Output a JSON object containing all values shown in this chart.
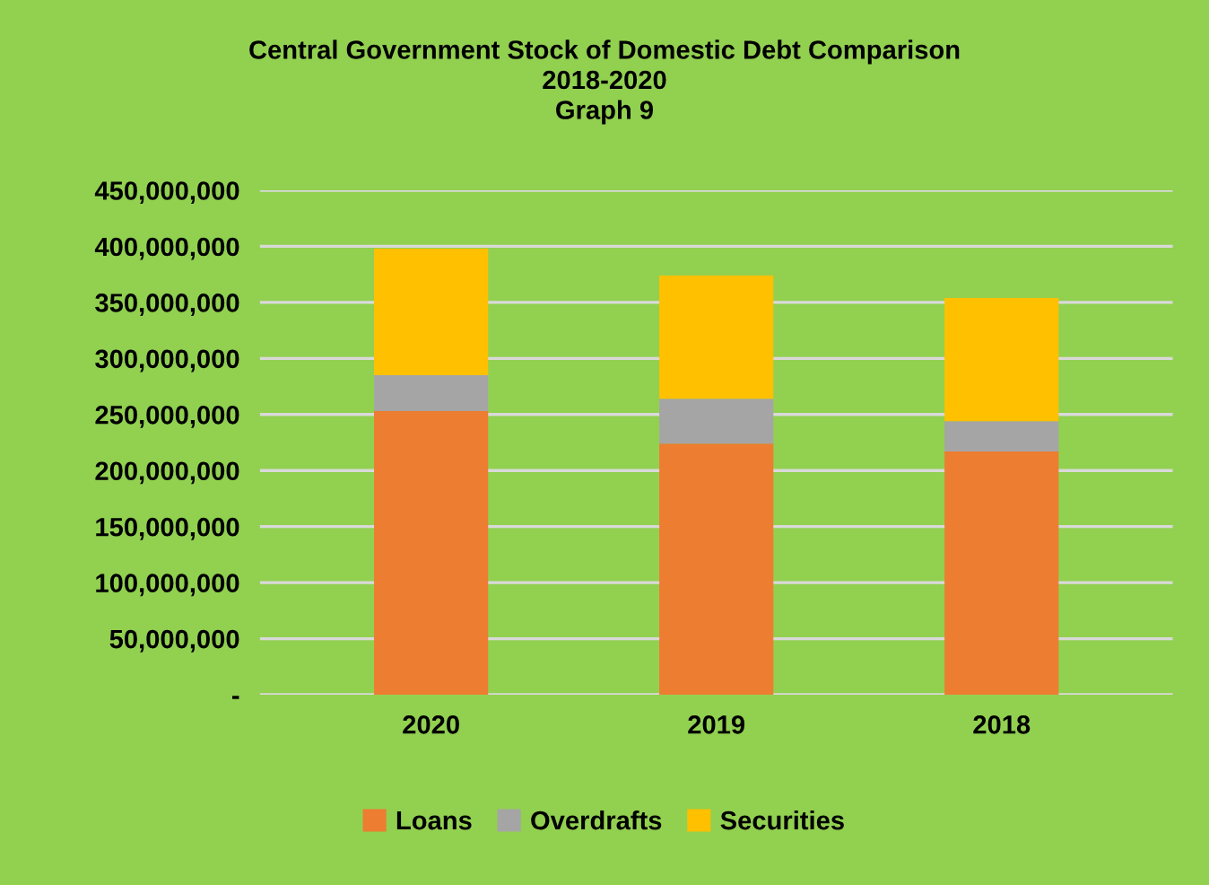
{
  "chart_data": {
    "type": "bar",
    "title": "Central Government Stock of Domestic Debt Comparison\n2018-2020\nGraph 9",
    "categories": [
      "2020",
      "2019",
      "2018"
    ],
    "stacked": true,
    "series": [
      {
        "name": "Loans",
        "color": "#ed7d31",
        "values": [
          253000000,
          224000000,
          217000000
        ]
      },
      {
        "name": "Overdrafts",
        "color": "#a5a5a5",
        "values": [
          32000000,
          40000000,
          27000000
        ]
      },
      {
        "name": "Securities",
        "color": "#ffc000",
        "values": [
          113000000,
          110000000,
          110000000
        ]
      }
    ],
    "ylim": [
      0,
      450000000
    ],
    "yticks": [
      {
        "value": 0,
        "label": "-"
      },
      {
        "value": 50000000,
        "label": "50,000,000"
      },
      {
        "value": 100000000,
        "label": "100,000,000"
      },
      {
        "value": 150000000,
        "label": "150,000,000"
      },
      {
        "value": 200000000,
        "label": "200,000,000"
      },
      {
        "value": 250000000,
        "label": "250,000,000"
      },
      {
        "value": 300000000,
        "label": "300,000,000"
      },
      {
        "value": 350000000,
        "label": "350,000,000"
      },
      {
        "value": 400000000,
        "label": "400,000,000"
      },
      {
        "value": 450000000,
        "label": "450,000,000"
      }
    ],
    "grid": "y",
    "legend": "bottom"
  }
}
